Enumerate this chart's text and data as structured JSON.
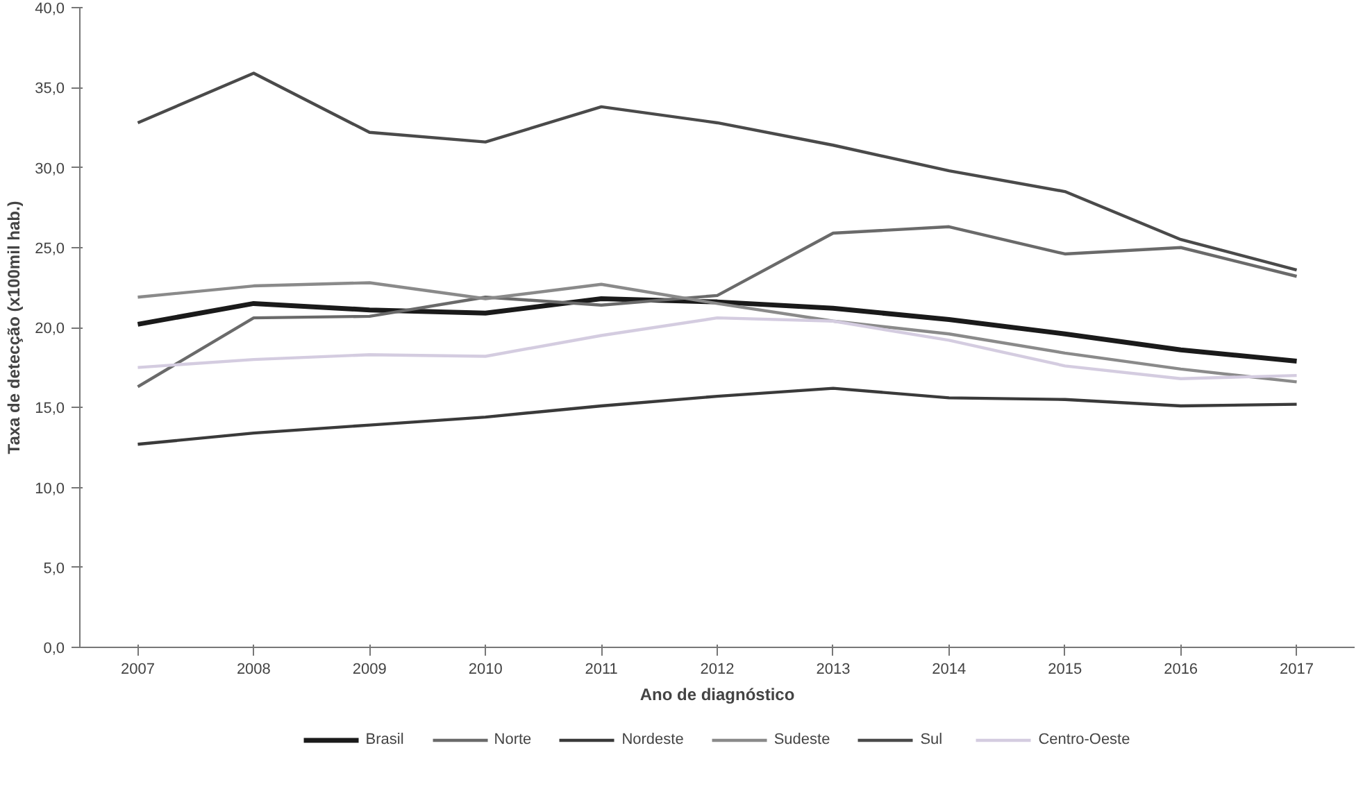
{
  "chart_data": {
    "type": "line",
    "xlabel": "Ano de diagnóstico",
    "ylabel": "Taxa de detecção (x100mil hab.)",
    "categories": [
      "2007",
      "2008",
      "2009",
      "2010",
      "2011",
      "2012",
      "2013",
      "2014",
      "2015",
      "2016",
      "2017"
    ],
    "ylim": [
      0,
      40
    ],
    "yticks": [
      {
        "value": 0,
        "label": "0,0"
      },
      {
        "value": 5,
        "label": "5,0"
      },
      {
        "value": 10,
        "label": "10,0"
      },
      {
        "value": 15,
        "label": "15,0"
      },
      {
        "value": 20,
        "label": "20,0"
      },
      {
        "value": 25,
        "label": "25,0"
      },
      {
        "value": 30,
        "label": "30,0"
      },
      {
        "value": 35,
        "label": "35,0"
      },
      {
        "value": 40,
        "label": "40,0"
      }
    ],
    "grid": false,
    "legend": "bottom",
    "marker": "none",
    "line_style": "solid",
    "series": [
      {
        "name": "Brasil",
        "color": "#1a1a1a",
        "values": [
          20.2,
          21.5,
          21.1,
          20.9,
          21.8,
          21.6,
          21.2,
          20.5,
          19.6,
          18.6,
          17.9
        ]
      },
      {
        "name": "Norte",
        "color": "#6a6a6a",
        "values": [
          16.3,
          20.6,
          20.7,
          21.9,
          21.4,
          22.0,
          25.9,
          26.3,
          24.6,
          25.0,
          23.2
        ]
      },
      {
        "name": "Nordeste",
        "color": "#3a3a3a",
        "values": [
          12.7,
          13.4,
          13.9,
          14.4,
          15.1,
          15.7,
          16.2,
          15.6,
          15.5,
          15.1,
          15.2
        ]
      },
      {
        "name": "Sudeste",
        "color": "#8a8a8a",
        "values": [
          21.9,
          22.6,
          22.8,
          21.8,
          22.7,
          21.5,
          20.4,
          19.6,
          18.4,
          17.4,
          16.6
        ]
      },
      {
        "name": "Sul",
        "color": "#4a4a4a",
        "values": [
          32.8,
          35.9,
          32.2,
          31.6,
          33.8,
          32.8,
          31.4,
          29.8,
          28.5,
          25.5,
          23.6
        ]
      },
      {
        "name": "Centro-Oeste",
        "color": "#d4cce0",
        "values": [
          17.5,
          18.0,
          18.3,
          18.2,
          19.5,
          20.6,
          20.4,
          19.2,
          17.6,
          16.8,
          17.0
        ]
      }
    ]
  }
}
